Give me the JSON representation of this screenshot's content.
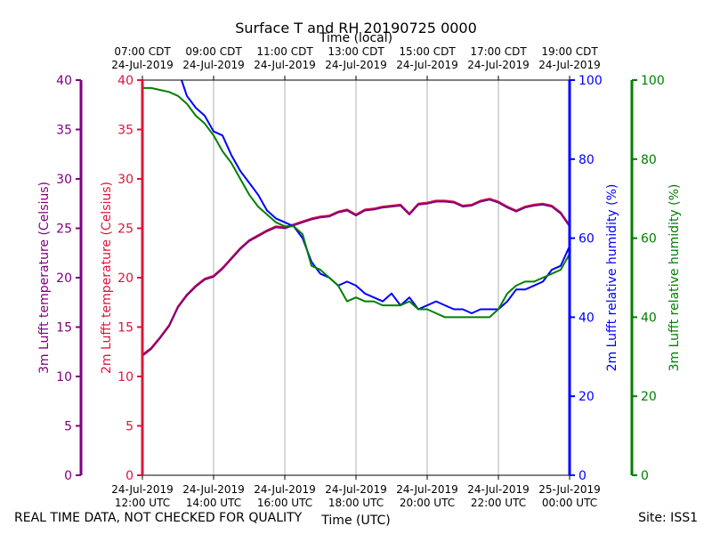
{
  "chart_data": {
    "type": "line",
    "title": "Surface T and RH 20190725 0000",
    "xlabel_top": "Time (local)",
    "xlabel_bottom": "Time (UTC)",
    "x_unit": "hours_utc",
    "xlim": [
      12,
      24
    ],
    "top_ticks": [
      {
        "x": 12,
        "line1": "07:00 CDT",
        "line2": "24-Jul-2019"
      },
      {
        "x": 14,
        "line1": "09:00 CDT",
        "line2": "24-Jul-2019"
      },
      {
        "x": 16,
        "line1": "11:00 CDT",
        "line2": "24-Jul-2019"
      },
      {
        "x": 18,
        "line1": "13:00 CDT",
        "line2": "24-Jul-2019"
      },
      {
        "x": 20,
        "line1": "15:00 CDT",
        "line2": "24-Jul-2019"
      },
      {
        "x": 22,
        "line1": "17:00 CDT",
        "line2": "24-Jul-2019"
      },
      {
        "x": 24,
        "line1": "19:00 CDT",
        "line2": "24-Jul-2019"
      }
    ],
    "bottom_ticks": [
      {
        "x": 12,
        "line1": "24-Jul-2019",
        "line2": "12:00 UTC"
      },
      {
        "x": 14,
        "line1": "24-Jul-2019",
        "line2": "14:00 UTC"
      },
      {
        "x": 16,
        "line1": "24-Jul-2019",
        "line2": "16:00 UTC"
      },
      {
        "x": 18,
        "line1": "24-Jul-2019",
        "line2": "18:00 UTC"
      },
      {
        "x": 20,
        "line1": "24-Jul-2019",
        "line2": "20:00 UTC"
      },
      {
        "x": 22,
        "line1": "24-Jul-2019",
        "line2": "22:00 UTC"
      },
      {
        "x": 24,
        "line1": "25-Jul-2019",
        "line2": "00:00 UTC"
      }
    ],
    "axes": {
      "temp3m": {
        "label": "3m Lufft temperature (Celsius)",
        "color": "#800080",
        "ylim": [
          0,
          40
        ],
        "ticks": [
          0,
          5,
          10,
          15,
          20,
          25,
          30,
          35,
          40
        ]
      },
      "temp2m": {
        "label": "2m Lufft temperature (Celsius)",
        "color": "#dc143c",
        "ylim": [
          0,
          40
        ],
        "ticks": [
          0,
          5,
          10,
          15,
          20,
          25,
          30,
          35,
          40
        ]
      },
      "rh2m": {
        "label": "2m Lufft relative humidity (%)",
        "color": "#0000ff",
        "ylim": [
          0,
          100
        ],
        "ticks": [
          0,
          20,
          40,
          60,
          80,
          100
        ]
      },
      "rh3m": {
        "label": "3m Lufft relative humidity (%)",
        "color": "#008000",
        "ylim": [
          0,
          100
        ],
        "ticks": [
          0,
          20,
          40,
          60,
          80,
          100
        ]
      }
    },
    "grid": true,
    "series": [
      {
        "name": "2m temperature",
        "axis": "temp2m",
        "color": "#dc143c",
        "x": [
          12,
          12.25,
          12.5,
          12.75,
          13,
          13.25,
          13.5,
          13.75,
          14,
          14.25,
          14.5,
          14.75,
          15,
          15.25,
          15.5,
          15.75,
          16,
          16.25,
          16.5,
          16.75,
          17,
          17.25,
          17.5,
          17.75,
          18,
          18.25,
          18.5,
          18.75,
          19,
          19.25,
          19.5,
          19.75,
          20,
          20.25,
          20.5,
          20.75,
          21,
          21.25,
          21.5,
          21.75,
          22,
          22.25,
          22.5,
          22.75,
          23,
          23.25,
          23.5,
          23.75,
          24
        ],
        "y": [
          12.2,
          12.9,
          14,
          15.2,
          17.1,
          18.3,
          19.2,
          19.9,
          20.2,
          21,
          22,
          23,
          23.8,
          24.3,
          24.8,
          25.2,
          25.1,
          25.4,
          25.7,
          26,
          26.2,
          26.3,
          26.7,
          26.9,
          26.4,
          26.9,
          27,
          27.2,
          27.3,
          27.4,
          26.5,
          27.5,
          27.6,
          27.8,
          27.8,
          27.7,
          27.3,
          27.4,
          27.8,
          28,
          27.7,
          27.2,
          26.8,
          27.2,
          27.4,
          27.5,
          27.3,
          26.6,
          25.3
        ]
      },
      {
        "name": "3m temperature",
        "axis": "temp3m",
        "color": "#800080",
        "x": [
          12,
          12.25,
          12.5,
          12.75,
          13,
          13.25,
          13.5,
          13.75,
          14,
          14.25,
          14.5,
          14.75,
          15,
          15.25,
          15.5,
          15.75,
          16,
          16.25,
          16.5,
          16.75,
          17,
          17.25,
          17.5,
          17.75,
          18,
          18.25,
          18.5,
          18.75,
          19,
          19.25,
          19.5,
          19.75,
          20,
          20.25,
          20.5,
          20.75,
          21,
          21.25,
          21.5,
          21.75,
          22,
          22.25,
          22.5,
          22.75,
          23,
          23.25,
          23.5,
          23.75,
          24
        ],
        "y": [
          12.1,
          12.8,
          13.9,
          15.1,
          17,
          18.2,
          19.1,
          19.8,
          20.1,
          20.9,
          21.9,
          22.9,
          23.7,
          24.2,
          24.7,
          25.1,
          25,
          25.3,
          25.6,
          25.9,
          26.1,
          26.2,
          26.6,
          26.8,
          26.3,
          26.8,
          26.9,
          27.1,
          27.2,
          27.3,
          26.4,
          27.4,
          27.5,
          27.7,
          27.7,
          27.6,
          27.2,
          27.3,
          27.7,
          27.9,
          27.6,
          27.1,
          26.7,
          27.1,
          27.3,
          27.4,
          27.2,
          26.5,
          25.2
        ]
      },
      {
        "name": "2m relative humidity",
        "axis": "rh2m",
        "color": "#0000ff",
        "x": [
          13.1,
          13.25,
          13.5,
          13.75,
          14,
          14.25,
          14.5,
          14.75,
          15,
          15.25,
          15.5,
          15.75,
          16,
          16.25,
          16.5,
          16.75,
          17,
          17.25,
          17.5,
          17.75,
          18,
          18.25,
          18.5,
          18.75,
          19,
          19.25,
          19.5,
          19.75,
          20,
          20.25,
          20.5,
          20.75,
          21,
          21.25,
          21.5,
          21.75,
          22,
          22.25,
          22.5,
          22.75,
          23,
          23.25,
          23.5,
          23.75,
          24
        ],
        "y": [
          100,
          96,
          93,
          91,
          87,
          86,
          81,
          77,
          74,
          71,
          67,
          65,
          64,
          63,
          60,
          54,
          51,
          50,
          48,
          49,
          48,
          46,
          45,
          44,
          46,
          43,
          45,
          42,
          43,
          44,
          43,
          42,
          42,
          41,
          42,
          42,
          42,
          44,
          47,
          47,
          48,
          49,
          52,
          53,
          58
        ]
      },
      {
        "name": "3m relative humidity",
        "axis": "rh3m",
        "color": "#008000",
        "x": [
          12,
          12.25,
          12.5,
          12.75,
          13,
          13.25,
          13.5,
          13.75,
          14,
          14.25,
          14.5,
          14.75,
          15,
          15.25,
          15.5,
          15.75,
          16,
          16.25,
          16.5,
          16.75,
          17,
          17.25,
          17.5,
          17.75,
          18,
          18.25,
          18.5,
          18.75,
          19,
          19.25,
          19.5,
          19.75,
          20,
          20.25,
          20.5,
          20.75,
          21,
          21.25,
          21.5,
          21.75,
          22,
          22.25,
          22.5,
          22.75,
          23,
          23.25,
          23.5,
          23.75,
          24
        ],
        "y": [
          98,
          98,
          97.5,
          97,
          96,
          94,
          91,
          89,
          86,
          82,
          79,
          75,
          71,
          68,
          66,
          64,
          63,
          63,
          61,
          53,
          52,
          50,
          48,
          44,
          45,
          44,
          44,
          43,
          43,
          43,
          44,
          42,
          42,
          41,
          40,
          40,
          40,
          40,
          40,
          40,
          42,
          46,
          48,
          49,
          49,
          50,
          51,
          52,
          56
        ]
      }
    ]
  },
  "footer": {
    "left": "REAL TIME DATA, NOT CHECKED FOR QUALITY",
    "right": "Site: ISS1"
  }
}
